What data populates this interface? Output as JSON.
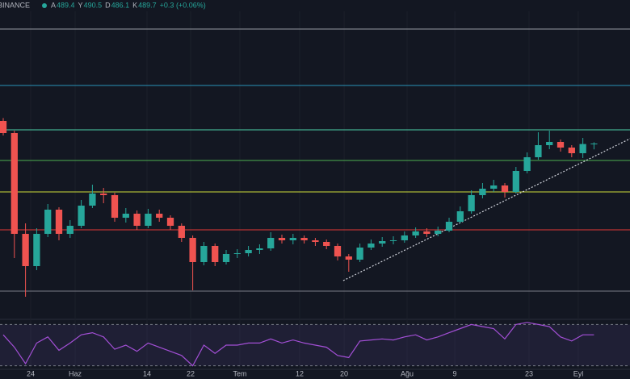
{
  "chart_data": {
    "type": "candlestick",
    "exchange": "BINANCE",
    "ohlc_labels": [
      "A",
      "Y",
      "D",
      "K"
    ],
    "change": "+0.3 (+0.06%)",
    "up_color": "#26a69a",
    "down_color": "#ef5350",
    "xlim": [
      -0.29,
      56.23
    ],
    "ylim": [
      381.2,
      571.2
    ],
    "xticks": [
      {
        "value": 2.46,
        "label": "24"
      },
      {
        "value": 6.45,
        "label": "Haz"
      },
      {
        "value": 12.9,
        "label": "14"
      },
      {
        "value": 16.81,
        "label": "22"
      },
      {
        "value": 21.23,
        "label": "Tem"
      },
      {
        "value": 26.59,
        "label": "12"
      },
      {
        "value": 30.58,
        "label": "20"
      },
      {
        "value": 36.23,
        "label": "Ağu"
      },
      {
        "value": 40.51,
        "label": "9"
      },
      {
        "value": 47.17,
        "label": "23"
      },
      {
        "value": 51.59,
        "label": "Eyl"
      }
    ],
    "open": [
      503.7,
      496.2,
      433.7,
      413.7,
      433.7,
      448.7,
      433.7,
      438.7,
      451.2,
      458.7,
      457.7,
      443.7,
      446.2,
      438.7,
      446.2,
      443.7,
      438.7,
      431.2,
      416.2,
      426.2,
      416.2,
      421.2,
      421.7,
      423.7,
      424.7,
      431.2,
      429.7,
      431.2,
      429.7,
      428.7,
      426.2,
      419.7,
      417.7,
      425.2,
      427.7,
      429.2,
      429.7,
      432.7,
      435.2,
      433.7,
      435.7,
      441.2,
      447.7,
      457.7,
      461.7,
      463.7,
      459.7,
      472.7,
      481.2,
      488.7,
      490.7,
      487.2,
      483.7,
      489.4
    ],
    "high": [
      505.5,
      497.7,
      440.2,
      437.2,
      452.2,
      450.2,
      442.2,
      454.7,
      464.2,
      462.2,
      459.2,
      449.7,
      448.2,
      449.2,
      448.7,
      445.2,
      440.2,
      432.7,
      428.7,
      427.7,
      423.7,
      424.2,
      426.2,
      427.2,
      434.7,
      433.2,
      433.7,
      432.7,
      431.2,
      430.2,
      427.7,
      421.2,
      427.7,
      430.2,
      431.7,
      432.2,
      435.2,
      437.7,
      437.2,
      438.2,
      443.7,
      450.7,
      460.7,
      465.2,
      467.2,
      465.2,
      475.2,
      484.2,
      496.7,
      497.7,
      492.2,
      488.7,
      493.2,
      490.5
    ],
    "low": [
      494.7,
      418.7,
      394.7,
      411.2,
      431.7,
      429.7,
      431.2,
      437.2,
      449.7,
      452.7,
      441.2,
      440.7,
      436.2,
      437.2,
      441.2,
      436.2,
      428.7,
      398.7,
      414.2,
      413.7,
      414.7,
      418.7,
      419.7,
      421.2,
      423.2,
      427.7,
      427.2,
      427.7,
      426.2,
      424.2,
      417.2,
      410.2,
      416.2,
      423.7,
      425.7,
      427.2,
      428.2,
      431.2,
      431.7,
      432.2,
      434.7,
      440.2,
      446.2,
      455.7,
      459.7,
      456.2,
      458.7,
      471.2,
      479.7,
      486.2,
      484.7,
      481.2,
      480.7,
      486.1
    ],
    "close": [
      496.2,
      433.7,
      413.7,
      433.7,
      448.7,
      433.7,
      438.7,
      451.2,
      458.7,
      457.7,
      443.7,
      446.2,
      438.7,
      446.2,
      443.7,
      438.7,
      431.2,
      416.2,
      426.2,
      416.2,
      421.2,
      421.7,
      423.7,
      424.7,
      431.2,
      429.7,
      431.2,
      429.7,
      428.7,
      426.2,
      419.7,
      417.7,
      425.2,
      427.7,
      429.2,
      429.7,
      432.7,
      435.2,
      433.7,
      435.7,
      441.2,
      447.7,
      457.7,
      461.7,
      463.7,
      459.7,
      472.7,
      481.2,
      488.7,
      490.7,
      487.2,
      483.7,
      489.4,
      489.7
    ],
    "levels": [
      {
        "value": 560.7,
        "color": "#9598a1"
      },
      {
        "value": 525.7,
        "color": "#2a93b8"
      },
      {
        "value": 498.2,
        "color": "#4dd0a8"
      },
      {
        "value": 479.2,
        "color": "#4caf50"
      },
      {
        "value": 459.7,
        "color": "#cddc39"
      },
      {
        "value": 436.2,
        "color": "#e53935"
      },
      {
        "value": 398.2,
        "color": "#787b86"
      }
    ],
    "trendline": {
      "x": [
        30.5,
        56.23
      ],
      "y": [
        404.7,
        492.7
      ],
      "color": "#d1d4dc"
    },
    "rsi": {
      "ylim": [
        25,
        75
      ],
      "levels": [
        70,
        30
      ],
      "color": "#a34fd6",
      "values": [
        60,
        48,
        32,
        52,
        58,
        45,
        52,
        60,
        62,
        58,
        46,
        50,
        44,
        52,
        48,
        44,
        40,
        30,
        50,
        42,
        50,
        50,
        52,
        52,
        56,
        52,
        55,
        52,
        50,
        48,
        40,
        38,
        54,
        55,
        56,
        55,
        58,
        60,
        55,
        58,
        62,
        66,
        70,
        68,
        66,
        56,
        70,
        72,
        70,
        68,
        58,
        54,
        60,
        60
      ]
    }
  }
}
